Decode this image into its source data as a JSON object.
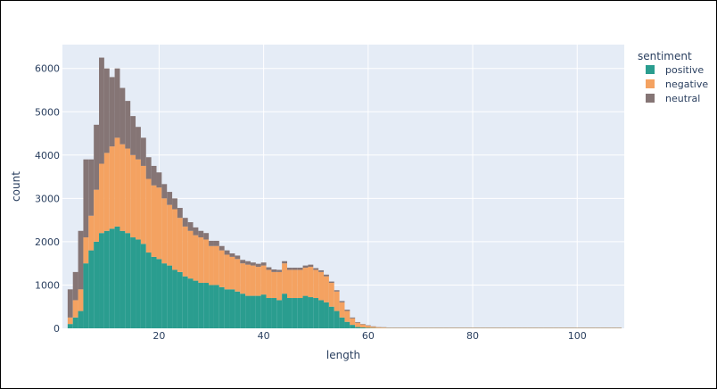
{
  "chart_data": {
    "type": "bar",
    "barmode": "stack",
    "xlabel": "length",
    "ylabel": "count",
    "xlim": [
      1.5,
      109
    ],
    "ylim": [
      0,
      6550
    ],
    "xticks": [
      20,
      40,
      60,
      80,
      100
    ],
    "yticks": [
      0,
      1000,
      2000,
      3000,
      4000,
      5000,
      6000
    ],
    "grid": true,
    "legend": {
      "title": "sentiment",
      "position": "top-right"
    },
    "colors": {
      "plot_bg": "#e5ecf6",
      "positive": "#2a9d8f",
      "negative": "#f4a261",
      "neutral": "#857575"
    },
    "x": [
      3,
      4,
      5,
      6,
      7,
      8,
      9,
      10,
      11,
      12,
      13,
      14,
      15,
      16,
      17,
      18,
      19,
      20,
      21,
      22,
      23,
      24,
      25,
      26,
      27,
      28,
      29,
      30,
      31,
      32,
      33,
      34,
      35,
      36,
      37,
      38,
      39,
      40,
      41,
      42,
      43,
      44,
      45,
      46,
      47,
      48,
      49,
      50,
      51,
      52,
      53,
      54,
      55,
      56,
      57,
      58,
      59,
      60,
      61,
      62,
      63,
      64,
      65,
      66,
      67,
      68,
      69,
      70,
      71,
      72,
      73,
      74,
      75,
      76,
      77,
      78,
      79,
      80,
      81,
      82,
      83,
      84,
      85,
      86,
      87,
      88,
      89,
      90,
      91,
      92,
      93,
      94,
      95,
      96,
      97,
      98,
      99,
      100,
      101,
      102,
      103,
      104,
      105,
      106,
      107,
      108
    ],
    "series": [
      {
        "name": "positive",
        "values": [
          100,
          250,
          400,
          1500,
          1800,
          2000,
          2200,
          2250,
          2300,
          2350,
          2250,
          2200,
          2100,
          2050,
          1950,
          1750,
          1650,
          1600,
          1500,
          1450,
          1350,
          1300,
          1200,
          1150,
          1100,
          1050,
          1050,
          1000,
          1000,
          950,
          900,
          900,
          850,
          800,
          750,
          750,
          750,
          780,
          700,
          700,
          650,
          800,
          700,
          700,
          700,
          750,
          720,
          700,
          650,
          600,
          500,
          400,
          250,
          150,
          80,
          30,
          20,
          10,
          8,
          5,
          5,
          5,
          5,
          5,
          5,
          5,
          5,
          5,
          5,
          5,
          5,
          5,
          5,
          5,
          5,
          5,
          5,
          5,
          5,
          5,
          5,
          5,
          5,
          5,
          5,
          5,
          5,
          5,
          5,
          5,
          5,
          5,
          5,
          5,
          5,
          5,
          5,
          5,
          5,
          5,
          5,
          5,
          5,
          5,
          5,
          5
        ]
      },
      {
        "name": "negative",
        "values": [
          150,
          400,
          500,
          600,
          800,
          1200,
          1600,
          1800,
          1900,
          2050,
          2000,
          1950,
          1900,
          1850,
          1800,
          1700,
          1650,
          1650,
          1500,
          1400,
          1400,
          1250,
          1150,
          1100,
          1050,
          1050,
          1000,
          900,
          900,
          850,
          800,
          750,
          750,
          700,
          720,
          700,
          670,
          670,
          650,
          600,
          650,
          700,
          650,
          650,
          650,
          650,
          700,
          650,
          650,
          600,
          550,
          450,
          350,
          250,
          150,
          100,
          70,
          50,
          30,
          20,
          15,
          10,
          10,
          10,
          10,
          10,
          10,
          10,
          10,
          10,
          10,
          10,
          10,
          10,
          10,
          10,
          10,
          10,
          10,
          10,
          10,
          10,
          10,
          10,
          10,
          10,
          10,
          10,
          10,
          10,
          10,
          10,
          10,
          10,
          10,
          10,
          10,
          10,
          10,
          10,
          10,
          10,
          10,
          10,
          10,
          10
        ]
      },
      {
        "name": "neutral",
        "values": [
          650,
          650,
          1350,
          1800,
          1300,
          1500,
          2450,
          1950,
          1600,
          1600,
          1300,
          1100,
          900,
          750,
          650,
          500,
          450,
          350,
          330,
          300,
          250,
          230,
          200,
          200,
          180,
          150,
          150,
          120,
          120,
          100,
          100,
          80,
          80,
          80,
          80,
          70,
          70,
          70,
          60,
          60,
          50,
          50,
          50,
          50,
          50,
          50,
          50,
          40,
          40,
          40,
          30,
          30,
          30,
          30,
          20,
          15,
          10,
          10,
          8,
          5,
          5,
          5,
          5,
          5,
          5,
          5,
          5,
          5,
          5,
          5,
          5,
          5,
          5,
          5,
          5,
          5,
          5,
          5,
          5,
          5,
          5,
          5,
          5,
          5,
          5,
          5,
          5,
          5,
          5,
          5,
          5,
          5,
          5,
          5,
          5,
          5,
          5,
          5,
          5,
          5,
          5,
          5,
          5,
          5,
          5,
          5
        ]
      }
    ]
  }
}
